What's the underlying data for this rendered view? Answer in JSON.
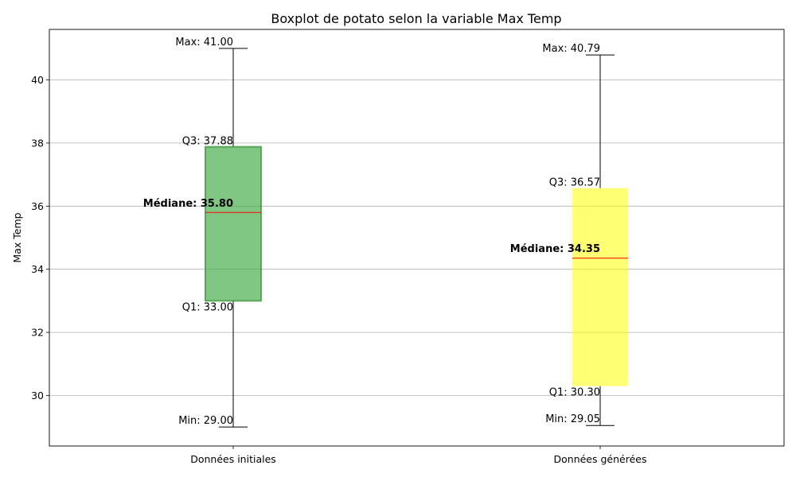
{
  "chart_data": {
    "type": "boxplot",
    "title": "Boxplot de potato selon la variable Max Temp",
    "xlabel": "",
    "ylabel": "Max Temp",
    "ylim": [
      28.4,
      41.6
    ],
    "yticks": [
      30,
      32,
      34,
      36,
      38,
      40
    ],
    "grid": "horizontal",
    "categories": [
      "Données initiales",
      "Données générées"
    ],
    "series": [
      {
        "category": "Données initiales",
        "min": 29.0,
        "q1": 33.0,
        "median": 35.8,
        "q3": 37.88,
        "max": 41.0,
        "color": "#4caf50",
        "labels": {
          "max": "Max: 41.00",
          "q3": "Q3: 37.88",
          "median": "Médiane: 35.80",
          "q1": "Q1: 33.00",
          "min": "Min: 29.00"
        }
      },
      {
        "category": "Données générées",
        "min": 29.05,
        "q1": 30.3,
        "median": 34.35,
        "q3": 36.57,
        "max": 40.79,
        "color": "#ffff00",
        "labels": {
          "max": "Max: 40.79",
          "q3": "Q3: 36.57",
          "median": "Médiane: 34.35",
          "q1": "Q1: 30.30",
          "min": "Min: 29.05"
        }
      }
    ],
    "median_line_color": "#ff0000"
  }
}
